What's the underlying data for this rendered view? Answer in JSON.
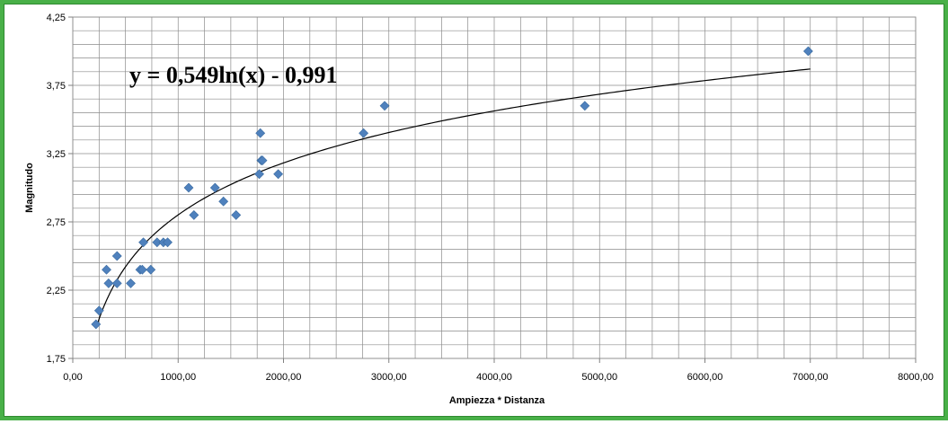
{
  "chart_data": {
    "type": "scatter",
    "title": "",
    "xlabel": "Ampiezza * Distanza",
    "ylabel": "Magnitudo",
    "xlim": [
      0,
      8000
    ],
    "ylim": [
      1.75,
      4.25
    ],
    "x_ticks": [
      0,
      1000,
      2000,
      3000,
      4000,
      5000,
      6000,
      7000,
      8000
    ],
    "x_tick_labels": [
      "0,00",
      "1000,00",
      "2000,00",
      "3000,00",
      "4000,00",
      "5000,00",
      "6000,00",
      "7000,00",
      "8000,00"
    ],
    "y_ticks": [
      1.75,
      2.25,
      2.75,
      3.25,
      3.75,
      4.25
    ],
    "y_tick_labels": [
      "1,75",
      "2,25",
      "2,75",
      "3,25",
      "3,75",
      "4,25"
    ],
    "grid": true,
    "marker_color": "#4f81bd",
    "trendline": {
      "type": "logarithmic",
      "a": 0.549,
      "b": -0.991,
      "x_range": [
        220,
        7000
      ],
      "equation_label": "y = 0,549ln(x) - 0,991"
    },
    "series": [
      {
        "points": [
          [
            220,
            2.0
          ],
          [
            250,
            2.1
          ],
          [
            320,
            2.4
          ],
          [
            340,
            2.3
          ],
          [
            420,
            2.5
          ],
          [
            420,
            2.3
          ],
          [
            550,
            2.3
          ],
          [
            640,
            2.4
          ],
          [
            660,
            2.4
          ],
          [
            670,
            2.6
          ],
          [
            740,
            2.4
          ],
          [
            800,
            2.6
          ],
          [
            860,
            2.6
          ],
          [
            900,
            2.6
          ],
          [
            1100,
            3.0
          ],
          [
            1150,
            2.8
          ],
          [
            1350,
            3.0
          ],
          [
            1430,
            2.9
          ],
          [
            1550,
            2.8
          ],
          [
            1770,
            3.1
          ],
          [
            1780,
            3.4
          ],
          [
            1790,
            3.2
          ],
          [
            1800,
            3.2
          ],
          [
            1950,
            3.1
          ],
          [
            2760,
            3.4
          ],
          [
            2960,
            3.6
          ],
          [
            4860,
            3.6
          ],
          [
            6980,
            4.0
          ]
        ]
      }
    ]
  }
}
